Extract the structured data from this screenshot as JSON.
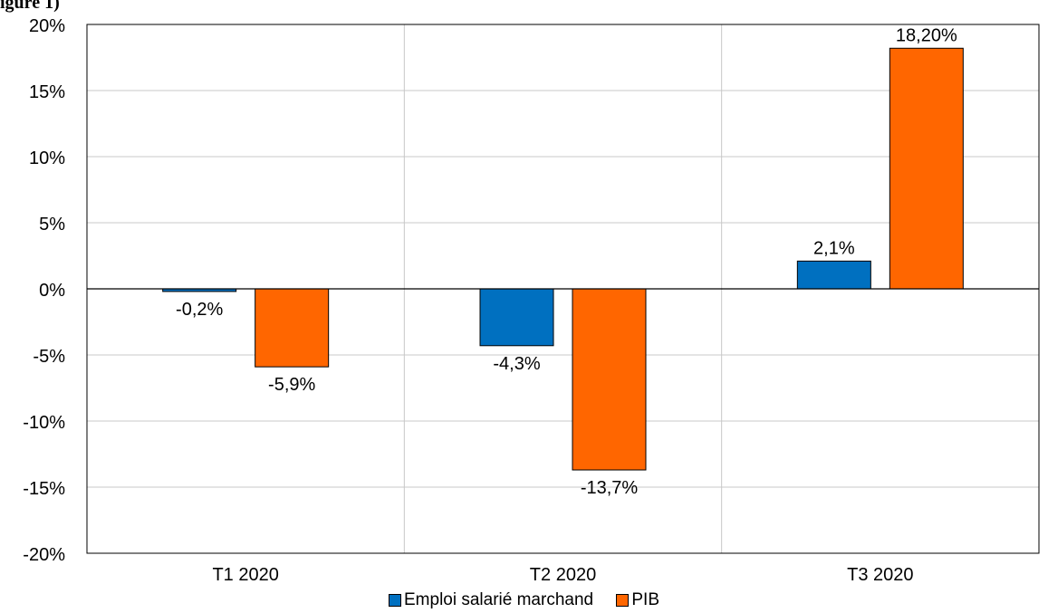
{
  "header_fragment": "igure 1)",
  "chart_data": {
    "type": "bar",
    "categories": [
      "T1 2020",
      "T2 2020",
      "T3 2020"
    ],
    "series": [
      {
        "name": "Emploi salarié marchand",
        "values": [
          -0.2,
          -4.3,
          2.1
        ],
        "labels": [
          "-0,2%",
          "-4,3%",
          "2,1%"
        ],
        "color": "#0070C0"
      },
      {
        "name": "PIB",
        "values": [
          -5.9,
          -13.7,
          18.2
        ],
        "labels": [
          "-5,9%",
          "-13,7%",
          "18,20%"
        ],
        "color": "#FF6600"
      }
    ],
    "ylim": [
      -20,
      20
    ],
    "yticks": [
      20,
      15,
      10,
      5,
      0,
      -5,
      -10,
      -15,
      -20
    ],
    "ytick_labels": [
      "20%",
      "15%",
      "10%",
      "5%",
      "0%",
      "-5%",
      "-10%",
      "-15%",
      "-20%"
    ],
    "grid": true,
    "legend_position": "bottom",
    "title": "",
    "xlabel": "",
    "ylabel": ""
  }
}
